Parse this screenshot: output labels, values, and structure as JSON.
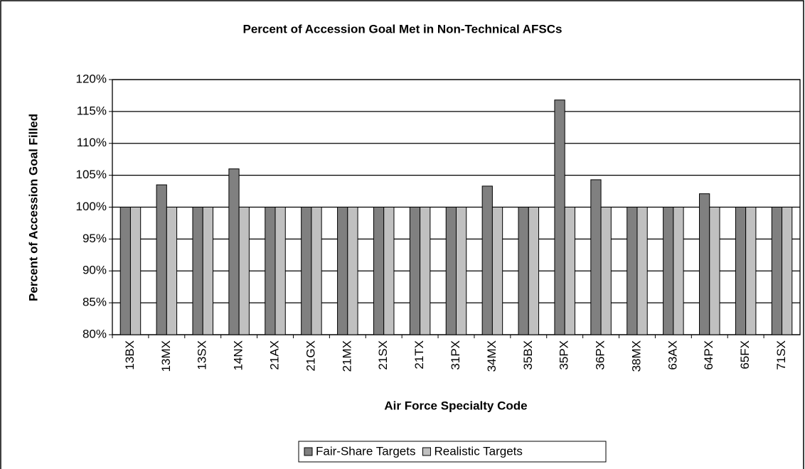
{
  "chart_data": {
    "type": "bar",
    "title": "Percent of Accession Goal Met in Non-Technical AFSCs",
    "x_label": "Air Force Specialty Code",
    "y_label": "Percent of Accession Goal Filled",
    "categories": [
      "13BX",
      "13MX",
      "13SX",
      "14NX",
      "21AX",
      "21GX",
      "21MX",
      "21SX",
      "21TX",
      "31PX",
      "34MX",
      "35BX",
      "35PX",
      "36PX",
      "38MX",
      "63AX",
      "64PX",
      "65FX",
      "71SX"
    ],
    "series": [
      {
        "name": "Fair-Share Targets",
        "color": "#808080",
        "values": [
          100,
          103.5,
          100,
          106,
          100,
          100,
          100,
          100,
          100,
          100,
          103.3,
          100,
          116.8,
          104.3,
          100,
          100,
          102.1,
          100,
          100
        ]
      },
      {
        "name": "Realistic Targets",
        "color": "#c0c0c0",
        "values": [
          100,
          100,
          100,
          100,
          100,
          100,
          100,
          100,
          100,
          100,
          100,
          100,
          100,
          100,
          100,
          100,
          100,
          100,
          100
        ]
      }
    ],
    "ylim": [
      80,
      120
    ],
    "yticks": [
      {
        "value": 80,
        "label": "80%"
      },
      {
        "value": 85,
        "label": "85%"
      },
      {
        "value": 90,
        "label": "90%"
      },
      {
        "value": 95,
        "label": "95%"
      },
      {
        "value": 100,
        "label": "100%"
      },
      {
        "value": 105,
        "label": "105%"
      },
      {
        "value": 110,
        "label": "110%"
      },
      {
        "value": 115,
        "label": "115%"
      },
      {
        "value": 120,
        "label": "120%"
      }
    ],
    "grid": true,
    "legend": "bottom"
  }
}
